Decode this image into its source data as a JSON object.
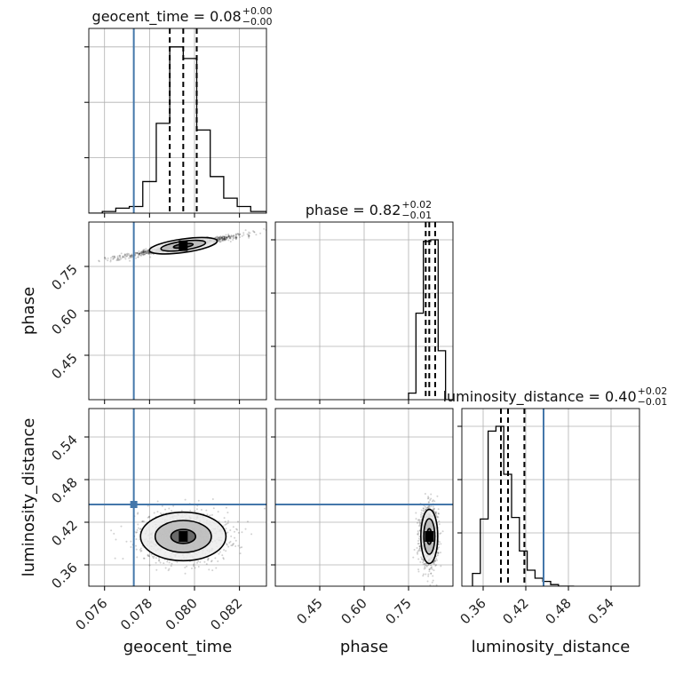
{
  "chart_data": {
    "type": "corner",
    "parameters": [
      "geocent_time",
      "phase",
      "luminosity_distance"
    ],
    "truths": {
      "geocent_time": 0.0773,
      "phase": null,
      "luminosity_distance": 0.445
    },
    "titles": [
      {
        "param": "geocent_time",
        "text": "geocent_time = 0.08",
        "sup": "+0.00",
        "sub": "−0.00"
      },
      {
        "param": "phase",
        "text": "phase = 0.82",
        "sup": "+0.02",
        "sub": "−0.01"
      },
      {
        "param": "luminosity_distance",
        "text": "luminosity_distance = 0.40",
        "sup": "+0.02",
        "sub": "−0.01"
      }
    ],
    "axes": {
      "geocent_time": {
        "range": [
          0.0753,
          0.0832
        ],
        "ticks": [
          0.076,
          0.078,
          0.08,
          0.082
        ],
        "tick_labels": [
          "0.076",
          "0.078",
          "0.080",
          "0.082"
        ],
        "label": "geocent_time"
      },
      "phase": {
        "range": [
          0.3,
          0.9
        ],
        "ticks": [
          0.45,
          0.6,
          0.75
        ],
        "tick_labels": [
          "0.45",
          "0.60",
          "0.75"
        ],
        "label": "phase"
      },
      "luminosity_distance": {
        "range": [
          0.33,
          0.58
        ],
        "ticks": [
          0.36,
          0.42,
          0.48,
          0.54
        ],
        "tick_labels": [
          "0.36",
          "0.42",
          "0.48",
          "0.54"
        ],
        "label": "luminosity_distance"
      }
    },
    "histograms": [
      {
        "param": "geocent_time",
        "bin_edges": [
          0.0753,
          0.0759,
          0.0765,
          0.0771,
          0.0777,
          0.0783,
          0.0789,
          0.0795,
          0.0801,
          0.0807,
          0.0813,
          0.0819,
          0.0825,
          0.0832
        ],
        "counts": [
          0,
          1,
          3,
          4,
          19,
          54,
          100,
          93,
          50,
          22,
          9,
          4,
          1
        ],
        "quantiles": [
          0.0789,
          0.0795,
          0.0801
        ]
      },
      {
        "param": "phase",
        "bin_edges": [
          0.75,
          0.775,
          0.8,
          0.825,
          0.85,
          0.875,
          0.9
        ],
        "counts": [
          4,
          53,
          97,
          98,
          30,
          0
        ],
        "quantiles": [
          0.808,
          0.82,
          0.84
        ]
      },
      {
        "param": "luminosity_distance",
        "bin_edges": [
          0.345,
          0.356,
          0.367,
          0.378,
          0.389,
          0.4,
          0.411,
          0.422,
          0.433,
          0.444,
          0.455,
          0.466,
          0.477,
          0.488
        ],
        "counts": [
          8,
          42,
          97,
          100,
          70,
          43,
          22,
          10,
          5,
          3,
          1,
          0,
          0
        ],
        "quantiles": [
          0.385,
          0.395,
          0.418
        ]
      }
    ],
    "scatter_2d": [
      {
        "x": "geocent_time",
        "y": "phase",
        "center": [
          0.0795,
          0.82
        ],
        "spread": [
          0.0008,
          0.02
        ],
        "trend": "positive"
      },
      {
        "x": "geocent_time",
        "y": "luminosity_distance",
        "center": [
          0.0795,
          0.4
        ],
        "spread": [
          0.001,
          0.018
        ]
      },
      {
        "x": "phase",
        "y": "luminosity_distance",
        "center": [
          0.82,
          0.4
        ],
        "spread": [
          0.015,
          0.02
        ]
      }
    ],
    "grid": true,
    "colors": {
      "truth": "#4477aa",
      "hist": "#000000",
      "points": "#000000",
      "grid": "#b0b0b0"
    }
  }
}
